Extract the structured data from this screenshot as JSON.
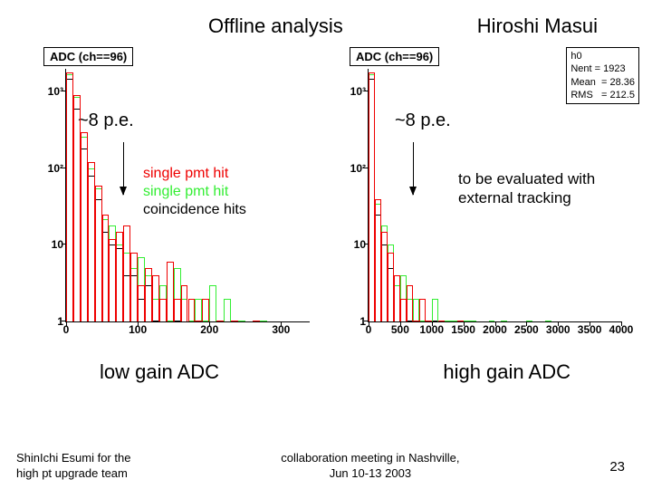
{
  "header": {
    "title": "Offline analysis",
    "author": "Hiroshi Masui"
  },
  "colors": {
    "red": "#ee0000",
    "green": "#33ee33",
    "black": "#000000",
    "bg": "#ffffff"
  },
  "left_chart": {
    "title": "ADC (ch==96)",
    "type": "histogram",
    "yscale": "log",
    "ylim": [
      1,
      2000
    ],
    "ytick_labels": [
      "1",
      "10",
      "10²",
      "10³"
    ],
    "xlim": [
      0,
      340
    ],
    "xtick_step": 100,
    "xtick_labels": [
      "0",
      "100",
      "200",
      "300"
    ],
    "pe_label": "~8 p.e.",
    "legend": [
      {
        "text": "single pmt hit",
        "color": "#ee0000"
      },
      {
        "text": "single pmt hit",
        "color": "#33ee33"
      },
      {
        "text": "coincidence hits",
        "color": "#000000"
      }
    ],
    "bottom_label": "low gain ADC",
    "bins": {
      "bin_width": 10,
      "red": [
        1800,
        900,
        300,
        120,
        60,
        25,
        12,
        15,
        18,
        8,
        3,
        5,
        4,
        2,
        6,
        2,
        3,
        2,
        1,
        2,
        0,
        1,
        0,
        1,
        0,
        0,
        1,
        0,
        0,
        0,
        0,
        0,
        0,
        0
      ],
      "green": [
        1700,
        850,
        260,
        100,
        55,
        22,
        18,
        10,
        8,
        5,
        7,
        4,
        2,
        3,
        1,
        5,
        2,
        1,
        2,
        1,
        3,
        1,
        2,
        0,
        1,
        0,
        0,
        1,
        0,
        0,
        0,
        0,
        0,
        0
      ],
      "black": [
        1500,
        600,
        180,
        80,
        40,
        15,
        10,
        9,
        4,
        4,
        2,
        3,
        1,
        2,
        0,
        1,
        2,
        0,
        1,
        0,
        0,
        1,
        0,
        0,
        0,
        0,
        0,
        0,
        0,
        0,
        0,
        0,
        0,
        0
      ]
    }
  },
  "right_chart": {
    "title": "ADC (ch==96)",
    "type": "histogram",
    "yscale": "log",
    "ylim": [
      1,
      2000
    ],
    "ytick_labels": [
      "1",
      "10",
      "10²",
      "10³"
    ],
    "xlim": [
      0,
      4000
    ],
    "xtick_step": 500,
    "xtick_labels": [
      "0",
      "500",
      "1000",
      "1500",
      "2000",
      "2500",
      "3000",
      "3500",
      "4000"
    ],
    "pe_label": "~8 p.e.",
    "note": "to be evaluated with external tracking",
    "bottom_label": "high gain ADC",
    "stats": {
      "name": "h0",
      "Nent": "1923",
      "Mean": "28.36",
      "RMS": "212.5"
    },
    "bins": {
      "bin_width": 100,
      "red": [
        1800,
        40,
        15,
        8,
        4,
        2,
        3,
        1,
        2,
        1,
        0,
        1,
        0,
        0,
        1,
        0,
        0,
        0,
        0,
        0,
        0,
        0,
        0,
        0,
        0,
        0,
        0,
        0,
        0,
        0,
        0,
        0,
        0,
        0,
        0,
        0,
        0,
        0,
        0,
        0
      ],
      "green": [
        1700,
        35,
        18,
        10,
        3,
        4,
        2,
        2,
        1,
        1,
        2,
        0,
        1,
        1,
        0,
        1,
        1,
        0,
        0,
        1,
        0,
        1,
        0,
        0,
        0,
        1,
        0,
        0,
        1,
        0,
        0,
        0,
        0,
        0,
        0,
        0,
        0,
        0,
        0,
        0
      ],
      "black": [
        1500,
        25,
        10,
        5,
        3,
        2,
        1,
        1,
        1,
        0,
        1,
        0,
        0,
        0,
        0,
        0,
        0,
        0,
        0,
        0,
        0,
        0,
        0,
        0,
        0,
        0,
        0,
        0,
        0,
        0,
        0,
        0,
        0,
        0,
        0,
        0,
        0,
        0,
        0,
        0
      ]
    }
  },
  "footer": {
    "left1": "ShinIchi Esumi for the",
    "left2": "high pt upgrade team",
    "center1": "collaboration meeting in Nashville,",
    "center2": "Jun 10-13 2003",
    "page": "23"
  }
}
